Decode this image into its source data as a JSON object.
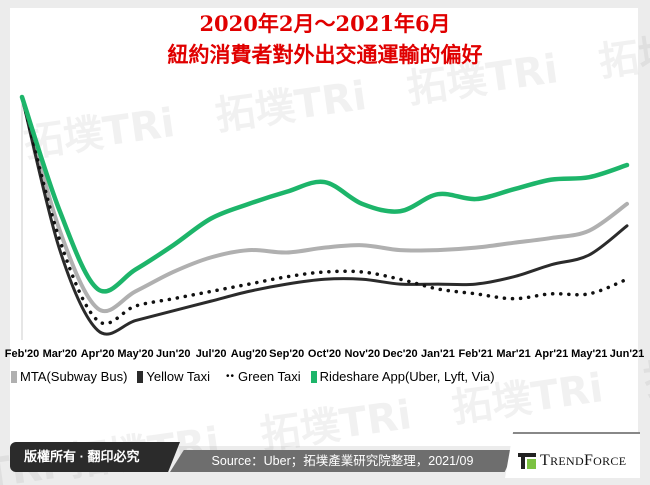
{
  "title_line1": "2020年2月～2021年6月",
  "title_line2": "紐約消費者對外出交通運輸的偏好",
  "watermark": "拓墣 TRi TOPOLOGY RESEARCH INSTITUTE",
  "chart_data": {
    "type": "line",
    "title": "",
    "xlabel": "",
    "ylabel": "",
    "categories": [
      "Feb'20",
      "Mar'20",
      "Apr'20",
      "May'20",
      "Jun'20",
      "Jul'20",
      "Aug'20",
      "Sep'20",
      "Oct'20",
      "Nov'20",
      "Dec'20",
      "Jan'21",
      "Feb'21",
      "Mar'21",
      "Apr'21",
      "May'21",
      "Jun'21"
    ],
    "ylim": [
      0,
      100
    ],
    "y_axis_shown": false,
    "grid": false,
    "legend_position": "bottom",
    "series": [
      {
        "name": "MTA(Subway Bus)",
        "color": "#b0b0b0",
        "style": "solid",
        "values": [
          100,
          45,
          13,
          20,
          28,
          34,
          37,
          36,
          38,
          39,
          37,
          37,
          38,
          40,
          42,
          45,
          56
        ]
      },
      {
        "name": "Yellow Taxi",
        "color": "#2b2b2b",
        "style": "solid",
        "values": [
          100,
          37,
          4,
          8,
          12,
          16,
          20,
          23,
          25,
          25,
          23,
          23,
          23,
          26,
          31,
          35,
          47
        ]
      },
      {
        "name": "Green Taxi",
        "color": "#111111",
        "style": "dotted",
        "values": [
          100,
          41,
          8,
          14,
          17,
          20,
          23,
          26,
          28,
          28,
          25,
          21,
          19,
          17,
          19,
          19,
          25
        ]
      },
      {
        "name": "Rideshare App(Uber, Lyft, Via)",
        "color": "#1db56a",
        "style": "solid",
        "values": [
          100,
          53,
          21,
          29,
          39,
          50,
          56,
          61,
          65,
          56,
          53,
          60,
          58,
          62,
          66,
          67,
          72
        ]
      }
    ]
  },
  "footer": {
    "copyright": "版權所有 · 翻印必究",
    "source": "Source：Uber；拓墣產業研究院整理，2021/09",
    "logo_text": "TRENDFORCE"
  }
}
